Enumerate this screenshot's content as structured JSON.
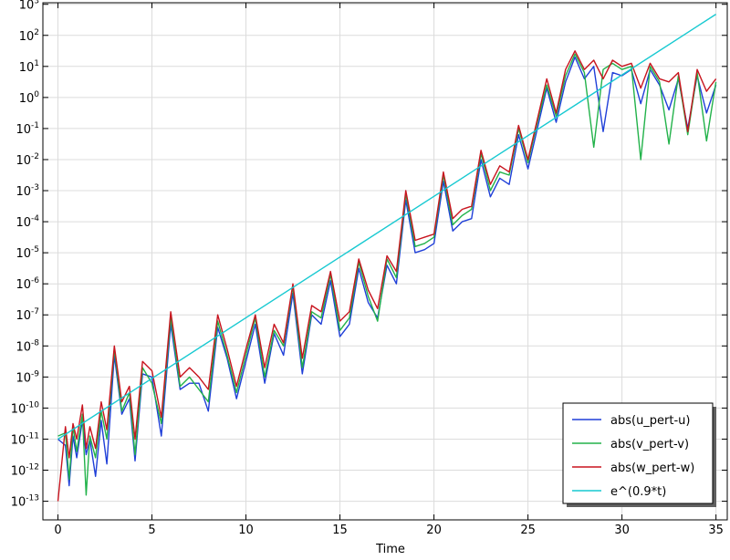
{
  "chart_data": {
    "type": "line",
    "title": "",
    "xlabel": "Time",
    "ylabel": "",
    "xlim": [
      -0.8,
      35.6
    ],
    "ylim_log10": [
      -13.6,
      3.05
    ],
    "y_scale": "log",
    "grid": true,
    "legend_position": "bottom-right",
    "x_ticks": [
      0,
      5,
      10,
      15,
      20,
      25,
      30,
      35
    ],
    "x_tick_labels": [
      "0",
      "5",
      "10",
      "15",
      "20",
      "25",
      "30",
      "35"
    ],
    "y_tick_exponents": [
      -13,
      -12,
      -11,
      -10,
      -9,
      -8,
      -7,
      -6,
      -5,
      -4,
      -3,
      -2,
      -1,
      0,
      1,
      2,
      3
    ],
    "y_tick_base": "10",
    "series": [
      {
        "name": "abs(u_pert-u)",
        "color": "#1f3fd8",
        "x": [
          0,
          0.4,
          0.6,
          0.8,
          1.0,
          1.3,
          1.5,
          1.7,
          2.0,
          2.3,
          2.6,
          3.0,
          3.4,
          3.8,
          4.1,
          4.5,
          5.0,
          5.5,
          6.0,
          6.5,
          7.0,
          7.5,
          8.0,
          8.5,
          9.0,
          9.5,
          10.0,
          10.5,
          11.0,
          11.5,
          12.0,
          12.5,
          13.0,
          13.5,
          14.0,
          14.5,
          15.0,
          15.5,
          16.0,
          16.5,
          17.0,
          17.5,
          18.0,
          18.5,
          19.0,
          19.5,
          20.0,
          20.5,
          21.0,
          21.5,
          22.0,
          22.5,
          23.0,
          23.5,
          24.0,
          24.5,
          25.0,
          25.5,
          26.0,
          26.5,
          27.0,
          27.5,
          28.0,
          28.5,
          29.0,
          29.5,
          30.0,
          30.5,
          31.0,
          31.5,
          32.0,
          32.5,
          33.0,
          33.5,
          34.0,
          34.5,
          35.0
        ],
        "y_log10": [
          -11.0,
          -11.2,
          -12.5,
          -10.9,
          -11.6,
          -10.4,
          -11.5,
          -11.0,
          -12.2,
          -10.4,
          -11.8,
          -8.3,
          -10.2,
          -9.7,
          -11.7,
          -8.9,
          -9.0,
          -10.9,
          -7.3,
          -9.4,
          -9.2,
          -9.2,
          -10.1,
          -7.4,
          -8.4,
          -9.7,
          -8.5,
          -7.3,
          -9.2,
          -7.6,
          -8.3,
          -6.3,
          -8.9,
          -7.0,
          -7.3,
          -5.9,
          -7.7,
          -7.3,
          -5.5,
          -6.6,
          -7.1,
          -5.4,
          -6.0,
          -3.3,
          -5.0,
          -4.9,
          -4.7,
          -2.7,
          -4.3,
          -4.0,
          -3.9,
          -2.0,
          -3.2,
          -2.6,
          -2.8,
          -1.2,
          -2.3,
          -1.0,
          0.3,
          -0.8,
          0.5,
          1.3,
          0.6,
          1.0,
          -1.1,
          0.8,
          0.7,
          0.9,
          -0.2,
          0.9,
          0.4,
          -0.4,
          0.6,
          -1.0,
          0.7,
          -0.5,
          0.4
        ]
      },
      {
        "name": "abs(v_pert-v)",
        "color": "#22b24a",
        "x": [
          0,
          0.4,
          0.6,
          0.8,
          1.0,
          1.3,
          1.5,
          1.7,
          2.0,
          2.3,
          2.6,
          3.0,
          3.4,
          3.8,
          4.1,
          4.5,
          5.0,
          5.5,
          6.0,
          6.5,
          7.0,
          7.5,
          8.0,
          8.5,
          9.0,
          9.5,
          10.0,
          10.5,
          11.0,
          11.5,
          12.0,
          12.5,
          13.0,
          13.5,
          14.0,
          14.5,
          15.0,
          15.5,
          16.0,
          16.5,
          17.0,
          17.5,
          18.0,
          18.5,
          19.0,
          19.5,
          20.0,
          20.5,
          21.0,
          21.5,
          22.0,
          22.5,
          23.0,
          23.5,
          24.0,
          24.5,
          25.0,
          25.5,
          26.0,
          26.5,
          27.0,
          27.5,
          28.0,
          28.5,
          29.0,
          29.5,
          30.0,
          30.5,
          31.0,
          31.5,
          32.0,
          32.5,
          33.0,
          33.5,
          34.0,
          34.5,
          35.0
        ],
        "y_log10": [
          -10.9,
          -10.8,
          -12.3,
          -10.6,
          -11.4,
          -10.2,
          -12.8,
          -10.9,
          -11.6,
          -10.1,
          -11.0,
          -8.1,
          -10.1,
          -9.5,
          -11.5,
          -8.7,
          -9.2,
          -10.5,
          -7.1,
          -9.3,
          -9.0,
          -9.4,
          -9.8,
          -7.2,
          -8.3,
          -9.5,
          -8.3,
          -7.1,
          -9.0,
          -7.5,
          -8.0,
          -6.1,
          -8.7,
          -6.9,
          -7.1,
          -5.7,
          -7.5,
          -7.1,
          -5.3,
          -6.4,
          -7.2,
          -5.2,
          -5.8,
          -3.1,
          -4.8,
          -4.7,
          -4.5,
          -2.5,
          -4.1,
          -3.8,
          -3.6,
          -1.8,
          -3.0,
          -2.4,
          -2.5,
          -1.0,
          -2.1,
          -0.8,
          0.4,
          -0.6,
          0.7,
          1.4,
          0.8,
          -1.6,
          0.9,
          1.1,
          0.9,
          1.0,
          -2.0,
          1.0,
          0.5,
          -1.5,
          0.7,
          -1.2,
          0.8,
          -1.4,
          0.5
        ]
      },
      {
        "name": "abs(w_pert-w)",
        "color": "#c8141e",
        "x": [
          0,
          0.4,
          0.6,
          0.8,
          1.0,
          1.3,
          1.5,
          1.7,
          2.0,
          2.3,
          2.6,
          3.0,
          3.4,
          3.8,
          4.1,
          4.5,
          5.0,
          5.5,
          6.0,
          6.5,
          7.0,
          7.5,
          8.0,
          8.5,
          9.0,
          9.5,
          10.0,
          10.5,
          11.0,
          11.5,
          12.0,
          12.5,
          13.0,
          13.5,
          14.0,
          14.5,
          15.0,
          15.5,
          16.0,
          16.5,
          17.0,
          17.5,
          18.0,
          18.5,
          19.0,
          19.5,
          20.0,
          20.5,
          21.0,
          21.5,
          22.0,
          22.5,
          23.0,
          23.5,
          24.0,
          24.5,
          25.0,
          25.5,
          26.0,
          26.5,
          27.0,
          27.5,
          28.0,
          28.5,
          29.0,
          29.5,
          30.0,
          30.5,
          31.0,
          31.5,
          32.0,
          32.5,
          33.0,
          33.5,
          34.0,
          34.5,
          35.0
        ],
        "y_log10": [
          -13.0,
          -10.6,
          -11.6,
          -10.5,
          -11.0,
          -9.9,
          -11.3,
          -10.6,
          -11.3,
          -9.8,
          -10.7,
          -8.0,
          -9.8,
          -9.3,
          -11.0,
          -8.5,
          -8.8,
          -10.3,
          -6.9,
          -9.0,
          -8.7,
          -9.0,
          -9.4,
          -7.0,
          -8.1,
          -9.3,
          -8.1,
          -7.0,
          -8.7,
          -7.3,
          -7.9,
          -6.0,
          -8.4,
          -6.7,
          -6.9,
          -5.6,
          -7.2,
          -6.9,
          -5.2,
          -6.2,
          -6.8,
          -5.1,
          -5.6,
          -3.0,
          -4.6,
          -4.5,
          -4.4,
          -2.4,
          -3.9,
          -3.6,
          -3.5,
          -1.7,
          -2.8,
          -2.2,
          -2.4,
          -0.9,
          -2.0,
          -0.7,
          0.6,
          -0.5,
          0.9,
          1.5,
          0.9,
          1.2,
          0.6,
          1.2,
          1.0,
          1.1,
          0.3,
          1.1,
          0.6,
          0.5,
          0.8,
          -1.1,
          0.9,
          0.2,
          0.6
        ]
      },
      {
        "name": "e^(0.9*t)",
        "color": "#17c9d1",
        "x": [
          0,
          35
        ],
        "y_log10": [
          -11.0,
          2.68
        ]
      }
    ]
  }
}
